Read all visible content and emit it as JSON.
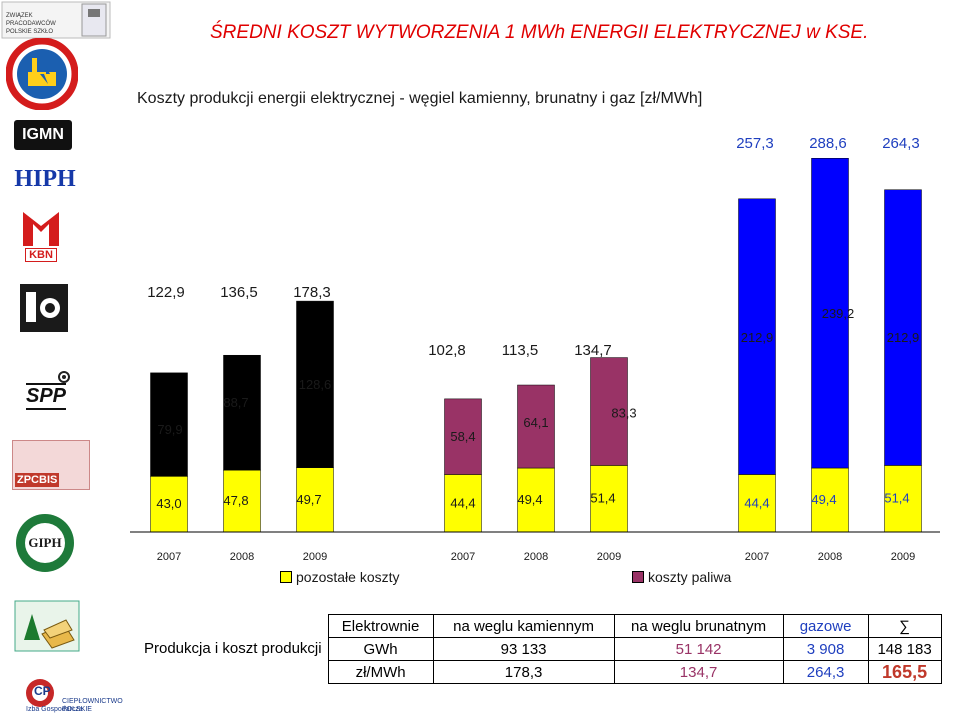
{
  "header": {
    "title": "ŚREDNI KOSZT WYTWORZENIA 1 MWh ENERGII ELEKTRYCZNEJ w KSE.",
    "subtitle": "Koszty produkcji energii elektrycznej - węgiel kamienny, brunatny i gaz [zł/MWh]"
  },
  "logos": {
    "zps": "ZWIĄZEK PRACODAWCÓW POLSKIE SZKŁO",
    "igmn": "IGMN",
    "hiph": "HIPH",
    "kbn": "KBN",
    "spp": "SPP",
    "zpcbis": "ZPCBIS",
    "giph": "GIPH",
    "izba_line1": "Izba Gospodarcza",
    "izba_line2": "CIEPŁOWNICTWO POLSKIE",
    "izba_mark": "CP"
  },
  "colors": {
    "fuel_coal": "#000000",
    "fuel_lignite": "#993366",
    "fuel_gas": "#0000ff",
    "other_costs": "#ffff00",
    "title": "#e00000",
    "value_blue": "#1f3fbf"
  },
  "chart_data": {
    "type": "bar",
    "stacked": true,
    "groups": [
      {
        "years": [
          "2007",
          "2008",
          "2009"
        ],
        "fuel": [
          79.9,
          88.7,
          128.6
        ],
        "other": [
          43.0,
          47.8,
          49.7
        ],
        "totals": [
          122.9,
          136.5,
          178.3
        ],
        "fuel_labels": [
          "79,9",
          "88,7",
          "128,6"
        ],
        "other_labels": [
          "43,0",
          "47,8",
          "49,7"
        ],
        "total_labels": [
          "122,9",
          "136,5",
          "178,3"
        ],
        "fuel_color": "#000000"
      },
      {
        "years": [
          "2007",
          "2008",
          "2009"
        ],
        "fuel": [
          58.4,
          64.1,
          83.3
        ],
        "other": [
          44.4,
          49.4,
          51.4
        ],
        "totals": [
          102.8,
          113.5,
          134.7
        ],
        "fuel_labels": [
          "58,4",
          "64,1",
          "83,3"
        ],
        "other_labels": [
          "44,4",
          "49,4",
          "51,4"
        ],
        "total_labels": [
          "102,8",
          "113,5",
          "134,7"
        ],
        "fuel_color": "#993366"
      },
      {
        "years": [
          "2007",
          "2008",
          "2009"
        ],
        "fuel": [
          212.9,
          239.2,
          212.9
        ],
        "other": [
          44.4,
          49.4,
          51.4
        ],
        "totals": [
          257.3,
          288.6,
          264.3
        ],
        "fuel_labels": [
          "212,9",
          "239,2",
          "212,9"
        ],
        "other_labels": [
          "44,4",
          "49,4",
          "51,4"
        ],
        "total_labels": [
          "257,3",
          "288,6",
          "264,3"
        ],
        "fuel_color": "#0000ff"
      }
    ],
    "legend": [
      {
        "label": "pozostałe koszty",
        "color": "#ffff00"
      },
      {
        "label": "koszty paliwa",
        "color": "#993366"
      }
    ]
  },
  "table": {
    "row_header": "Produkcja i koszt produkcji",
    "col_header": "Elektrownie",
    "columns": [
      "na weglu kamiennym",
      "na weglu brunatnym",
      "gazowe",
      "∑"
    ],
    "rows": [
      {
        "label": "GWh",
        "values": [
          "93 133",
          "51 142",
          "3 908",
          "148 183"
        ]
      },
      {
        "label": "zł/MWh",
        "values": [
          "178,3",
          "134,7",
          "264,3",
          "165,5"
        ]
      }
    ]
  }
}
